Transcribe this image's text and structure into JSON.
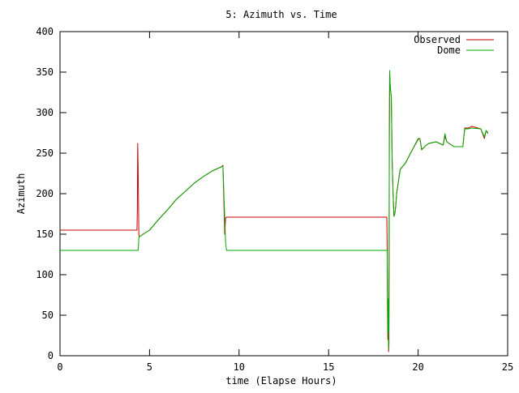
{
  "chart_data": {
    "type": "line",
    "title": "5: Azimuth vs. Time",
    "xlabel": "time (Elapse Hours)",
    "ylabel": "Azimuth",
    "xlim": [
      0,
      25
    ],
    "ylim": [
      0,
      400
    ],
    "x_ticks": [
      0,
      5,
      10,
      15,
      20,
      25
    ],
    "y_ticks": [
      0,
      50,
      100,
      150,
      200,
      250,
      300,
      350,
      400
    ],
    "grid": false,
    "legend_position": "top-right",
    "series": [
      {
        "name": "Observed",
        "color": "#cc0000",
        "x": [
          0,
          4.3,
          4.32,
          4.34,
          4.36,
          4.38,
          4.4,
          4.42,
          4.45,
          4.5,
          5,
          5.5,
          6,
          6.5,
          7,
          7.5,
          8,
          8.5,
          9,
          9.1,
          9.2,
          9.25,
          9.3,
          9.35,
          18.25,
          18.27,
          18.29,
          18.31,
          18.33,
          18.35,
          18.37,
          18.39,
          18.41,
          18.43,
          18.45,
          18.5,
          18.55,
          18.6,
          18.65,
          18.7,
          18.75,
          18.8,
          18.9,
          19,
          19.3,
          19.6,
          20,
          20.1,
          20.2,
          20.25,
          20.3,
          20.4,
          20.6,
          21,
          21.4,
          21.5,
          21.6,
          22,
          22.5,
          22.6,
          22.8,
          23,
          23.5,
          23.7,
          23.8,
          23.9
        ],
        "y": [
          155,
          155,
          180,
          262,
          235,
          200,
          150,
          147,
          147,
          148,
          155,
          168,
          180,
          193,
          203,
          213,
          221,
          228,
          233,
          235,
          150,
          170,
          171,
          171,
          171,
          140,
          60,
          20,
          70,
          5,
          15,
          265,
          350,
          340,
          330,
          320,
          240,
          200,
          172,
          175,
          185,
          200,
          215,
          230,
          238,
          251,
          267,
          268,
          254,
          256,
          256,
          259,
          262,
          264,
          260,
          271,
          264,
          258,
          258,
          281,
          281,
          283,
          280,
          268,
          278,
          275
        ]
      },
      {
        "name": "Dome",
        "color": "#00aa00",
        "x": [
          0,
          4.3,
          4.32,
          4.34,
          4.36,
          4.38,
          4.4,
          4.42,
          4.45,
          4.5,
          5,
          5.5,
          6,
          6.5,
          7,
          7.5,
          8,
          8.5,
          9,
          9.1,
          9.2,
          9.25,
          9.3,
          9.35,
          18.25,
          18.27,
          18.29,
          18.31,
          18.33,
          18.35,
          18.37,
          18.39,
          18.41,
          18.43,
          18.45,
          18.5,
          18.55,
          18.6,
          18.65,
          18.7,
          18.75,
          18.8,
          18.9,
          19,
          19.3,
          19.6,
          20,
          20.1,
          20.2,
          20.25,
          20.3,
          20.4,
          20.6,
          21,
          21.4,
          21.5,
          21.6,
          22,
          22.5,
          22.6,
          22.8,
          23,
          23.5,
          23.7,
          23.8,
          23.9
        ],
        "y": [
          130,
          130,
          130,
          130,
          130,
          135,
          145,
          147,
          147,
          148,
          155,
          168,
          180,
          193,
          203,
          213,
          221,
          228,
          233,
          234,
          170,
          140,
          130,
          130,
          130,
          130,
          90,
          30,
          70,
          8,
          45,
          265,
          352,
          340,
          330,
          320,
          240,
          200,
          172,
          175,
          185,
          200,
          215,
          230,
          238,
          251,
          268,
          268,
          254,
          256,
          256,
          259,
          262,
          264,
          260,
          274,
          264,
          258,
          258,
          280,
          280,
          281,
          280,
          270,
          278,
          274
        ]
      }
    ]
  }
}
